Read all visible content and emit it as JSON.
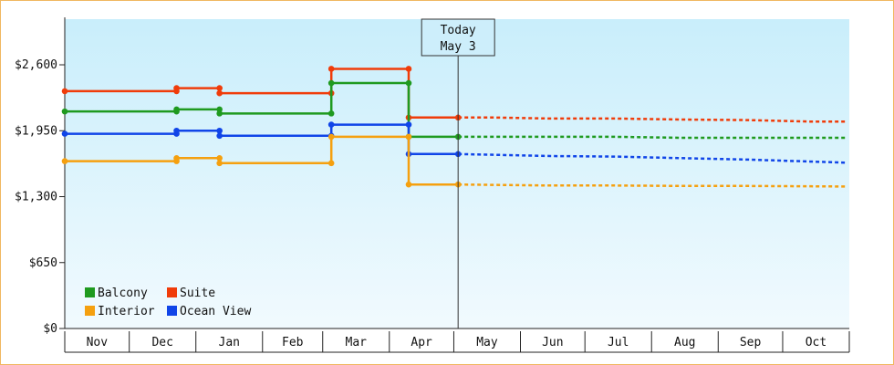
{
  "chart_data": {
    "type": "line",
    "line_style": "step",
    "y_axis": {
      "ticks": [
        {
          "value": 0,
          "label": "$0"
        },
        {
          "value": 650,
          "label": "$650"
        },
        {
          "value": 1300,
          "label": "$1,300"
        },
        {
          "value": 1950,
          "label": "$1,950"
        },
        {
          "value": 2600,
          "label": "$2,600"
        }
      ],
      "ylim": [
        0,
        3050
      ]
    },
    "x_axis": {
      "range": [
        "2024-11-01",
        "2025-11-01"
      ],
      "months": [
        "Nov",
        "Dec",
        "Jan",
        "Feb",
        "Mar",
        "Apr",
        "May",
        "Jun",
        "Jul",
        "Aug",
        "Sep",
        "Oct"
      ]
    },
    "today_marker": {
      "line1": "Today",
      "line2": "May 3",
      "date": "2025-05-03"
    },
    "grid": false,
    "legend": {
      "position": "bottom-left",
      "entries": [
        {
          "name": "Balcony",
          "color": "#1f9a1f"
        },
        {
          "name": "Suite",
          "color": "#f03c0a"
        },
        {
          "name": "Interior",
          "color": "#f5a00f"
        },
        {
          "name": "Ocean View",
          "color": "#1045e8"
        }
      ]
    },
    "series": [
      {
        "name": "Suite",
        "color": "#f03c0a",
        "history": [
          [
            "2024-11-01",
            2340
          ],
          [
            "2024-12-23",
            2340
          ],
          [
            "2024-12-23",
            2370
          ],
          [
            "2025-01-12",
            2370
          ],
          [
            "2025-01-12",
            2320
          ],
          [
            "2025-03-05",
            2320
          ],
          [
            "2025-03-05",
            2560
          ],
          [
            "2025-04-10",
            2560
          ],
          [
            "2025-04-10",
            2080
          ],
          [
            "2025-05-03",
            2080
          ]
        ],
        "forecast": [
          [
            "2025-05-03",
            2080
          ],
          [
            "2025-05-20",
            2080
          ],
          [
            "2025-06-15",
            2070
          ],
          [
            "2025-07-15",
            2070
          ],
          [
            "2025-08-15",
            2060
          ],
          [
            "2025-09-15",
            2055
          ],
          [
            "2025-10-15",
            2040
          ],
          [
            "2025-10-31",
            2040
          ]
        ]
      },
      {
        "name": "Balcony",
        "color": "#1f9a1f",
        "history": [
          [
            "2024-11-01",
            2140
          ],
          [
            "2024-12-23",
            2140
          ],
          [
            "2024-12-23",
            2160
          ],
          [
            "2025-01-12",
            2160
          ],
          [
            "2025-01-12",
            2120
          ],
          [
            "2025-03-05",
            2120
          ],
          [
            "2025-03-05",
            2420
          ],
          [
            "2025-04-10",
            2420
          ],
          [
            "2025-04-10",
            1890
          ],
          [
            "2025-05-03",
            1890
          ]
        ],
        "forecast": [
          [
            "2025-05-03",
            1890
          ],
          [
            "2025-06-15",
            1890
          ],
          [
            "2025-07-15",
            1890
          ],
          [
            "2025-08-15",
            1880
          ],
          [
            "2025-09-15",
            1880
          ],
          [
            "2025-10-31",
            1880
          ]
        ]
      },
      {
        "name": "Ocean View",
        "color": "#1045e8",
        "history": [
          [
            "2024-11-01",
            1920
          ],
          [
            "2024-12-23",
            1920
          ],
          [
            "2024-12-23",
            1950
          ],
          [
            "2025-01-12",
            1950
          ],
          [
            "2025-01-12",
            1900
          ],
          [
            "2025-03-05",
            1900
          ],
          [
            "2025-03-05",
            2010
          ],
          [
            "2025-04-10",
            2010
          ],
          [
            "2025-04-10",
            1720
          ],
          [
            "2025-05-03",
            1720
          ]
        ],
        "forecast": [
          [
            "2025-05-03",
            1720
          ],
          [
            "2025-06-15",
            1700
          ],
          [
            "2025-07-15",
            1695
          ],
          [
            "2025-08-15",
            1680
          ],
          [
            "2025-09-15",
            1665
          ],
          [
            "2025-10-31",
            1635
          ]
        ]
      },
      {
        "name": "Interior",
        "color": "#f5a00f",
        "history": [
          [
            "2024-11-01",
            1650
          ],
          [
            "2024-12-23",
            1650
          ],
          [
            "2024-12-23",
            1680
          ],
          [
            "2025-01-12",
            1680
          ],
          [
            "2025-01-12",
            1630
          ],
          [
            "2025-03-05",
            1630
          ],
          [
            "2025-03-05",
            1890
          ],
          [
            "2025-04-10",
            1890
          ],
          [
            "2025-04-10",
            1420
          ],
          [
            "2025-05-03",
            1420
          ]
        ],
        "forecast": [
          [
            "2025-05-03",
            1420
          ],
          [
            "2025-06-15",
            1410
          ],
          [
            "2025-07-15",
            1410
          ],
          [
            "2025-08-15",
            1405
          ],
          [
            "2025-09-15",
            1405
          ],
          [
            "2025-10-31",
            1400
          ]
        ]
      }
    ]
  }
}
